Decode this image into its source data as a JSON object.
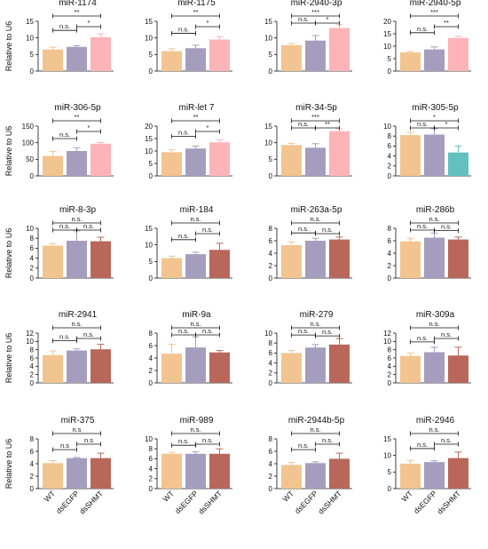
{
  "y_axis_label": "Relative to U6",
  "x_labels": [
    "WT",
    "dsEGFP",
    "dsSHMT"
  ],
  "colors": {
    "wt": "#f2c48f",
    "egfp": "#a59dbe",
    "pink": "#fcb4b8",
    "teal": "#62c1bf",
    "brown": "#b8675a",
    "line": "#111111"
  },
  "chart_data": [
    {
      "type": "bar",
      "title": "miR-1174",
      "categories": [
        "WT",
        "dsEGFP",
        "dsSHMT"
      ],
      "values": [
        6.5,
        7.3,
        10.2
      ],
      "errors": [
        0.7,
        0.4,
        1.0
      ],
      "ylim": [
        0,
        15
      ],
      "yticks": [
        0,
        5,
        10,
        15
      ],
      "colors": [
        "wt",
        "egfp",
        "pink"
      ],
      "comparisons": [
        {
          "from": 0,
          "to": 1,
          "label": "n.s."
        },
        {
          "from": 1,
          "to": 2,
          "label": "*"
        },
        {
          "from": 0,
          "to": 2,
          "label": "**"
        }
      ]
    },
    {
      "type": "bar",
      "title": "miR-1175",
      "categories": [
        "WT",
        "dsEGFP",
        "dsSHMT"
      ],
      "values": [
        6.0,
        6.9,
        9.5
      ],
      "errors": [
        0.7,
        0.9,
        0.8
      ],
      "ylim": [
        0,
        15
      ],
      "yticks": [
        0,
        5,
        10,
        15
      ],
      "colors": [
        "wt",
        "egfp",
        "pink"
      ],
      "comparisons": [
        {
          "from": 0,
          "to": 1,
          "label": "n.s."
        },
        {
          "from": 1,
          "to": 2,
          "label": "*"
        },
        {
          "from": 0,
          "to": 2,
          "label": "**"
        }
      ]
    },
    {
      "type": "bar",
      "title": "miR-2940-3p",
      "categories": [
        "WT",
        "dsEGFP",
        "dsSHMT"
      ],
      "values": [
        7.8,
        9.2,
        13.0
      ],
      "errors": [
        0.5,
        1.5,
        1.0
      ],
      "ylim": [
        0,
        15
      ],
      "yticks": [
        0,
        5,
        10,
        15
      ],
      "colors": [
        "wt",
        "egfp",
        "pink"
      ],
      "comparisons": [
        {
          "from": 0,
          "to": 1,
          "label": "n.s."
        },
        {
          "from": 1,
          "to": 2,
          "label": "*"
        },
        {
          "from": 0,
          "to": 2,
          "label": "***"
        }
      ]
    },
    {
      "type": "bar",
      "title": "miR-2940-5p",
      "categories": [
        "WT",
        "dsEGFP",
        "dsSHMT"
      ],
      "values": [
        7.5,
        8.7,
        13.3
      ],
      "errors": [
        0.4,
        1.0,
        0.7
      ],
      "ylim": [
        0,
        20
      ],
      "yticks": [
        0,
        5,
        10,
        15,
        20
      ],
      "colors": [
        "wt",
        "egfp",
        "pink"
      ],
      "comparisons": [
        {
          "from": 0,
          "to": 1,
          "label": "n.s."
        },
        {
          "from": 1,
          "to": 2,
          "label": "**"
        },
        {
          "from": 0,
          "to": 2,
          "label": "***"
        }
      ]
    },
    {
      "type": "bar",
      "title": "miR-306-5p",
      "categories": [
        "WT",
        "dsEGFP",
        "dsSHMT"
      ],
      "values": [
        60,
        75,
        97
      ],
      "errors": [
        14,
        10,
        4
      ],
      "ylim": [
        0,
        150
      ],
      "yticks": [
        0,
        50,
        100,
        150
      ],
      "colors": [
        "wt",
        "egfp",
        "pink"
      ],
      "comparisons": [
        {
          "from": 0,
          "to": 1,
          "label": "n.s."
        },
        {
          "from": 1,
          "to": 2,
          "label": "*"
        },
        {
          "from": 0,
          "to": 2,
          "label": "**"
        }
      ]
    },
    {
      "type": "bar",
      "title": "miR-let 7",
      "categories": [
        "WT",
        "dsEGFP",
        "dsSHMT"
      ],
      "values": [
        9.5,
        11.0,
        13.5
      ],
      "errors": [
        1.0,
        1.0,
        1.0
      ],
      "ylim": [
        0,
        20
      ],
      "yticks": [
        0,
        5,
        10,
        15,
        20
      ],
      "colors": [
        "wt",
        "egfp",
        "pink"
      ],
      "comparisons": [
        {
          "from": 0,
          "to": 1,
          "label": "n.s."
        },
        {
          "from": 1,
          "to": 2,
          "label": "*"
        },
        {
          "from": 0,
          "to": 2,
          "label": "**"
        }
      ]
    },
    {
      "type": "bar",
      "title": "miR-34-5p",
      "categories": [
        "WT",
        "dsEGFP",
        "dsSHMT"
      ],
      "values": [
        9.3,
        8.5,
        13.5
      ],
      "errors": [
        0.5,
        1.2,
        0.7
      ],
      "ylim": [
        0,
        15
      ],
      "yticks": [
        0,
        5,
        10,
        15
      ],
      "colors": [
        "wt",
        "egfp",
        "pink"
      ],
      "comparisons": [
        {
          "from": 0,
          "to": 1,
          "label": "n.s."
        },
        {
          "from": 1,
          "to": 2,
          "label": "**"
        },
        {
          "from": 0,
          "to": 2,
          "label": "***"
        }
      ]
    },
    {
      "type": "bar",
      "title": "miR-305-5p",
      "categories": [
        "WT",
        "dsEGFP",
        "dsSHMT"
      ],
      "values": [
        8.2,
        8.3,
        4.7
      ],
      "errors": [
        0.6,
        1.2,
        1.3
      ],
      "ylim": [
        0,
        10
      ],
      "yticks": [
        0,
        2,
        4,
        6,
        8,
        10
      ],
      "colors": [
        "wt",
        "egfp",
        "teal"
      ],
      "comparisons": [
        {
          "from": 0,
          "to": 1,
          "label": "n.s."
        },
        {
          "from": 1,
          "to": 2,
          "label": "*"
        },
        {
          "from": 0,
          "to": 2,
          "label": "*"
        }
      ]
    },
    {
      "type": "bar",
      "title": "miR-8-3p",
      "categories": [
        "WT",
        "dsEGFP",
        "dsSHMT"
      ],
      "values": [
        6.5,
        7.5,
        7.4
      ],
      "errors": [
        0.4,
        2.0,
        0.8
      ],
      "ylim": [
        0,
        10
      ],
      "yticks": [
        0,
        2,
        4,
        6,
        8,
        10
      ],
      "colors": [
        "wt",
        "egfp",
        "brown"
      ],
      "comparisons": [
        {
          "from": 0,
          "to": 1,
          "label": "n.s."
        },
        {
          "from": 1,
          "to": 2,
          "label": "n.s."
        },
        {
          "from": 0,
          "to": 2,
          "label": "n.s."
        }
      ]
    },
    {
      "type": "bar",
      "title": "miR-184",
      "categories": [
        "WT",
        "dsEGFP",
        "dsSHMT"
      ],
      "values": [
        6.0,
        7.2,
        8.5
      ],
      "errors": [
        0.6,
        0.6,
        2.0
      ],
      "ylim": [
        0,
        15
      ],
      "yticks": [
        0,
        5,
        10,
        15
      ],
      "colors": [
        "wt",
        "egfp",
        "brown"
      ],
      "comparisons": [
        {
          "from": 0,
          "to": 1,
          "label": "n.s."
        },
        {
          "from": 1,
          "to": 2,
          "label": "n.s."
        },
        {
          "from": 0,
          "to": 2,
          "label": "n.s."
        }
      ]
    },
    {
      "type": "bar",
      "title": "miR-263a-5p",
      "categories": [
        "WT",
        "dsEGFP",
        "dsSHMT"
      ],
      "values": [
        5.3,
        6.0,
        6.2
      ],
      "errors": [
        0.5,
        0.4,
        0.4
      ],
      "ylim": [
        0,
        8
      ],
      "yticks": [
        0,
        2,
        4,
        6,
        8
      ],
      "colors": [
        "wt",
        "egfp",
        "brown"
      ],
      "comparisons": [
        {
          "from": 0,
          "to": 1,
          "label": "n.s."
        },
        {
          "from": 1,
          "to": 2,
          "label": "n.s."
        },
        {
          "from": 0,
          "to": 2,
          "label": "n.s."
        }
      ]
    },
    {
      "type": "bar",
      "title": "miR-286b",
      "categories": [
        "WT",
        "dsEGFP",
        "dsSHMT"
      ],
      "values": [
        5.9,
        6.5,
        6.2
      ],
      "errors": [
        0.5,
        0.7,
        0.4
      ],
      "ylim": [
        0,
        8
      ],
      "yticks": [
        0,
        2,
        4,
        6,
        8
      ],
      "colors": [
        "wt",
        "egfp",
        "brown"
      ],
      "comparisons": [
        {
          "from": 0,
          "to": 1,
          "label": "n.s."
        },
        {
          "from": 1,
          "to": 2,
          "label": "n.s."
        },
        {
          "from": 0,
          "to": 2,
          "label": "n.s."
        }
      ]
    },
    {
      "type": "bar",
      "title": "miR-2941",
      "categories": [
        "WT",
        "dsEGFP",
        "dsSHMT"
      ],
      "values": [
        6.7,
        7.8,
        8.1
      ],
      "errors": [
        1.0,
        0.4,
        1.2
      ],
      "ylim": [
        0,
        12
      ],
      "yticks": [
        0,
        2,
        4,
        6,
        8,
        10,
        12
      ],
      "colors": [
        "wt",
        "egfp",
        "brown"
      ],
      "comparisons": [
        {
          "from": 0,
          "to": 1,
          "label": "n.s."
        },
        {
          "from": 1,
          "to": 2,
          "label": "n.s."
        },
        {
          "from": 0,
          "to": 2,
          "label": "n.s."
        }
      ]
    },
    {
      "type": "bar",
      "title": "miR-9a",
      "categories": [
        "WT",
        "dsEGFP",
        "dsSHMT"
      ],
      "values": [
        4.7,
        5.7,
        4.9
      ],
      "errors": [
        1.5,
        1.7,
        0.3
      ],
      "ylim": [
        0,
        8
      ],
      "yticks": [
        0,
        2,
        4,
        6,
        8
      ],
      "colors": [
        "wt",
        "egfp",
        "brown"
      ],
      "comparisons": [
        {
          "from": 0,
          "to": 1,
          "label": "n.s."
        },
        {
          "from": 1,
          "to": 2,
          "label": "n.s."
        },
        {
          "from": 0,
          "to": 2,
          "label": "n.s."
        }
      ]
    },
    {
      "type": "bar",
      "title": "miR-279",
      "categories": [
        "WT",
        "dsEGFP",
        "dsSHMT"
      ],
      "values": [
        6.0,
        7.1,
        7.7
      ],
      "errors": [
        0.5,
        0.6,
        1.2
      ],
      "ylim": [
        0,
        10
      ],
      "yticks": [
        0,
        2,
        4,
        6,
        8,
        10
      ],
      "colors": [
        "wt",
        "egfp",
        "brown"
      ],
      "comparisons": [
        {
          "from": 0,
          "to": 1,
          "label": "n.s."
        },
        {
          "from": 1,
          "to": 2,
          "label": "n.s."
        },
        {
          "from": 0,
          "to": 2,
          "label": "n.s."
        }
      ]
    },
    {
      "type": "bar",
      "title": "miR-309a",
      "categories": [
        "WT",
        "dsEGFP",
        "dsSHMT"
      ],
      "values": [
        6.5,
        7.4,
        6.6
      ],
      "errors": [
        0.7,
        1.2,
        2.0
      ],
      "ylim": [
        0,
        12
      ],
      "yticks": [
        0,
        2,
        4,
        6,
        8,
        10,
        12
      ],
      "colors": [
        "wt",
        "egfp",
        "brown"
      ],
      "comparisons": [
        {
          "from": 0,
          "to": 1,
          "label": "n.s."
        },
        {
          "from": 1,
          "to": 2,
          "label": "n.s."
        },
        {
          "from": 0,
          "to": 2,
          "label": "n.s."
        }
      ]
    },
    {
      "type": "bar",
      "title": "miR-375",
      "categories": [
        "WT",
        "dsEGFP",
        "dsSHMT"
      ],
      "values": [
        4.1,
        4.9,
        4.9
      ],
      "errors": [
        0.4,
        0.1,
        0.8
      ],
      "ylim": [
        0,
        8
      ],
      "yticks": [
        0,
        2,
        4,
        6,
        8
      ],
      "colors": [
        "wt",
        "egfp",
        "brown"
      ],
      "comparisons": [
        {
          "from": 0,
          "to": 1,
          "label": "n.s"
        },
        {
          "from": 1,
          "to": 2,
          "label": "n.s"
        },
        {
          "from": 0,
          "to": 2,
          "label": "n.s"
        }
      ]
    },
    {
      "type": "bar",
      "title": "miR-989",
      "categories": [
        "WT",
        "dsEGFP",
        "dsSHMT"
      ],
      "values": [
        7.0,
        7.0,
        7.0
      ],
      "errors": [
        0.3,
        0.4,
        1.0
      ],
      "ylim": [
        0,
        10
      ],
      "yticks": [
        0,
        2,
        4,
        6,
        8,
        10
      ],
      "colors": [
        "wt",
        "egfp",
        "brown"
      ],
      "comparisons": [
        {
          "from": 0,
          "to": 1,
          "label": "n.s."
        },
        {
          "from": 1,
          "to": 2,
          "label": "n.s."
        },
        {
          "from": 0,
          "to": 2,
          "label": "n.s."
        }
      ]
    },
    {
      "type": "bar",
      "title": "miR-2944b-5p",
      "categories": [
        "WT",
        "dsEGFP",
        "dsSHMT"
      ],
      "values": [
        3.8,
        4.1,
        4.8
      ],
      "errors": [
        0.4,
        0.2,
        0.9
      ],
      "ylim": [
        0,
        8
      ],
      "yticks": [
        0,
        2,
        4,
        6,
        8
      ],
      "colors": [
        "wt",
        "egfp",
        "brown"
      ],
      "comparisons": [
        {
          "from": 0,
          "to": 1,
          "label": "n.s."
        },
        {
          "from": 1,
          "to": 2,
          "label": "n.s."
        },
        {
          "from": 0,
          "to": 2,
          "label": "n.s."
        }
      ]
    },
    {
      "type": "bar",
      "title": "miR-2946",
      "categories": [
        "WT",
        "dsEGFP",
        "dsSHMT"
      ],
      "values": [
        7.5,
        8.0,
        9.2
      ],
      "errors": [
        1.0,
        0.4,
        1.8
      ],
      "ylim": [
        0,
        15
      ],
      "yticks": [
        0,
        5,
        10,
        15
      ],
      "colors": [
        "wt",
        "egfp",
        "brown"
      ],
      "comparisons": [
        {
          "from": 0,
          "to": 1,
          "label": "n.s."
        },
        {
          "from": 1,
          "to": 2,
          "label": "n.s."
        },
        {
          "from": 0,
          "to": 2,
          "label": "n.s."
        }
      ]
    }
  ]
}
